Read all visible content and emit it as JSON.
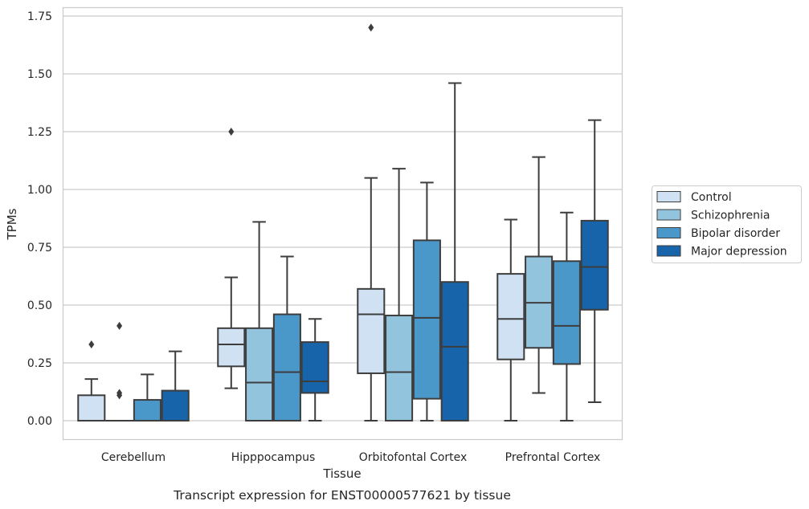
{
  "chart_data": {
    "type": "box",
    "xlabel": "Tissue",
    "ylabel": "TPMs",
    "caption": "Transcript expression for ENST00000577621 by tissue",
    "ylim": [
      -0.08,
      1.79
    ],
    "yticks": [
      "0.00",
      "0.25",
      "0.50",
      "0.75",
      "1.00",
      "1.25",
      "1.50",
      "1.75"
    ],
    "ytick_values": [
      0,
      0.25,
      0.5,
      0.75,
      1.0,
      1.25,
      1.5,
      1.75
    ],
    "grid": "horizontal",
    "legend_position": "right",
    "categories": [
      "Cerebellum",
      "Hipppocampus",
      "Orbitofontal Cortex",
      "Prefrontal Cortex"
    ],
    "series": [
      {
        "name": "Control",
        "color": "#cfe1f2",
        "boxes": [
          {
            "whislo": 0.0,
            "q1": 0.0,
            "med": 0.0,
            "q3": 0.11,
            "whishi": 0.18,
            "fliers": [
              0.33
            ]
          },
          {
            "whislo": 0.14,
            "q1": 0.235,
            "med": 0.33,
            "q3": 0.4,
            "whishi": 0.62,
            "fliers": [
              1.25
            ]
          },
          {
            "whislo": 0.0,
            "q1": 0.205,
            "med": 0.46,
            "q3": 0.57,
            "whishi": 1.05,
            "fliers": [
              1.7
            ]
          },
          {
            "whislo": 0.0,
            "q1": 0.265,
            "med": 0.44,
            "q3": 0.635,
            "whishi": 0.87,
            "fliers": []
          }
        ]
      },
      {
        "name": "Schizophrenia",
        "color": "#93c4de",
        "boxes": [
          {
            "whislo": 0.0,
            "q1": 0.0,
            "med": 0.0,
            "q3": 0.0,
            "whishi": 0.0,
            "fliers": [
              0.41,
              0.12,
              0.11
            ]
          },
          {
            "whislo": 0.0,
            "q1": 0.0,
            "med": 0.165,
            "q3": 0.4,
            "whishi": 0.86,
            "fliers": []
          },
          {
            "whislo": 0.0,
            "q1": 0.0,
            "med": 0.21,
            "q3": 0.455,
            "whishi": 1.09,
            "fliers": []
          },
          {
            "whislo": 0.12,
            "q1": 0.315,
            "med": 0.51,
            "q3": 0.71,
            "whishi": 1.14,
            "fliers": []
          }
        ]
      },
      {
        "name": "Bipolar disorder",
        "color": "#4a98c9",
        "boxes": [
          {
            "whislo": 0.0,
            "q1": 0.0,
            "med": 0.0,
            "q3": 0.09,
            "whishi": 0.2,
            "fliers": []
          },
          {
            "whislo": 0.0,
            "q1": 0.0,
            "med": 0.21,
            "q3": 0.46,
            "whishi": 0.71,
            "fliers": []
          },
          {
            "whislo": 0.0,
            "q1": 0.095,
            "med": 0.445,
            "q3": 0.78,
            "whishi": 1.03,
            "fliers": []
          },
          {
            "whislo": 0.0,
            "q1": 0.245,
            "med": 0.41,
            "q3": 0.69,
            "whishi": 0.9,
            "fliers": []
          }
        ]
      },
      {
        "name": "Major depression",
        "color": "#1764ab",
        "boxes": [
          {
            "whislo": 0.0,
            "q1": 0.0,
            "med": 0.0,
            "q3": 0.13,
            "whishi": 0.3,
            "fliers": []
          },
          {
            "whislo": 0.0,
            "q1": 0.12,
            "med": 0.17,
            "q3": 0.34,
            "whishi": 0.44,
            "fliers": []
          },
          {
            "whislo": 0.0,
            "q1": 0.0,
            "med": 0.32,
            "q3": 0.6,
            "whishi": 1.46,
            "fliers": []
          },
          {
            "whislo": 0.08,
            "q1": 0.48,
            "med": 0.665,
            "q3": 0.865,
            "whishi": 1.3,
            "fliers": []
          }
        ]
      }
    ]
  }
}
